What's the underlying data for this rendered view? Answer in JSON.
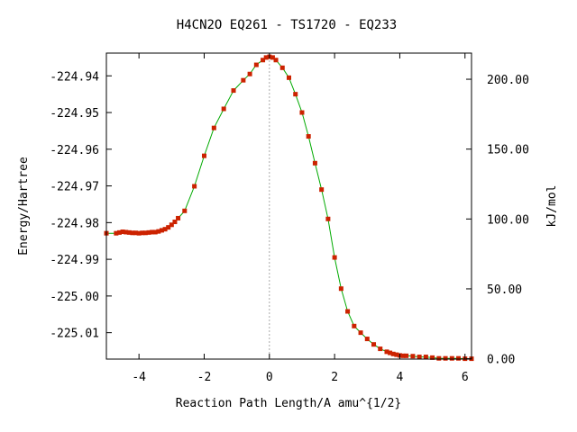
{
  "chart_data": {
    "type": "line",
    "title": "H4CN2O   EQ261 - TS1720 - EQ233",
    "xlabel": "Reaction Path Length/A amu^{1/2}",
    "ylabel": "Energy/Hartree",
    "y2label": "kJ/mol",
    "xlim": [
      -5.0,
      6.2
    ],
    "ylim": [
      -225.0172,
      -224.9338
    ],
    "xticks": [
      -4,
      -2,
      0,
      2,
      4,
      6
    ],
    "xtick_labels": [
      "-4",
      "-2",
      "0",
      "2",
      "4",
      "6"
    ],
    "yticks": [
      -224.94,
      -224.95,
      -224.96,
      -224.97,
      -224.98,
      -224.99,
      -225.0,
      -225.01
    ],
    "ytick_labels": [
      "-224.94",
      "-224.95",
      "-224.96",
      "-224.97",
      "-224.98",
      "-224.99",
      "-225.00",
      "-225.01"
    ],
    "y2_ticks_kjmol": [
      0,
      50,
      100,
      150,
      200
    ],
    "y2tick_labels": [
      "0.00",
      "50.00",
      "100.00",
      "150.00",
      "200.00"
    ],
    "y2_reference_hartree": -225.0171,
    "ts_marker_x": 0.0,
    "grid": false,
    "colors": {
      "line": "#00aa00",
      "marker": "#cc2200",
      "ts_line": "#aaaaaa"
    },
    "series": [
      {
        "x": [
          -5.0,
          -4.7,
          -4.6,
          -4.5,
          -4.4,
          -4.3,
          -4.2,
          -4.1,
          -4.0,
          -3.9,
          -3.8,
          -3.7,
          -3.6,
          -3.5,
          -3.4,
          -3.3,
          -3.2,
          -3.1,
          -3.0,
          -2.9,
          -2.8,
          -2.6,
          -2.3,
          -2.0,
          -1.7,
          -1.4,
          -1.1,
          -0.8,
          -0.6,
          -0.4,
          -0.2,
          -0.1,
          0.0,
          0.1,
          0.2,
          0.4,
          0.6,
          0.8,
          1.0,
          1.2,
          1.4,
          1.6,
          1.8,
          2.0,
          2.2,
          2.4,
          2.6,
          2.8,
          3.0,
          3.2,
          3.4,
          3.6,
          3.7,
          3.8,
          3.9,
          4.0,
          4.1,
          4.2,
          4.4,
          4.6,
          4.8,
          5.0,
          5.2,
          5.4,
          5.6,
          5.8,
          6.0,
          6.2
        ],
        "y": [
          -224.9829,
          -224.9829,
          -224.9827,
          -224.9825,
          -224.9826,
          -224.9827,
          -224.9828,
          -224.9828,
          -224.9829,
          -224.9828,
          -224.9828,
          -224.9827,
          -224.9826,
          -224.9826,
          -224.9824,
          -224.9821,
          -224.9818,
          -224.9813,
          -224.9806,
          -224.9798,
          -224.9788,
          -224.9768,
          -224.9701,
          -224.9618,
          -224.9542,
          -224.949,
          -224.944,
          -224.9412,
          -224.9395,
          -224.937,
          -224.9357,
          -224.935,
          -224.9348,
          -224.935,
          -224.9357,
          -224.9378,
          -224.9405,
          -224.945,
          -224.95,
          -224.9565,
          -224.9638,
          -224.971,
          -224.979,
          -224.9895,
          -224.998,
          -225.0042,
          -225.0082,
          -225.01,
          -225.0117,
          -225.0132,
          -225.0144,
          -225.0152,
          -225.0155,
          -225.0158,
          -225.016,
          -225.0162,
          -225.0163,
          -225.0163,
          -225.0164,
          -225.0166,
          -225.0166,
          -225.0168,
          -225.017,
          -225.017,
          -225.017,
          -225.017,
          -225.0171,
          -225.0171
        ]
      }
    ]
  }
}
